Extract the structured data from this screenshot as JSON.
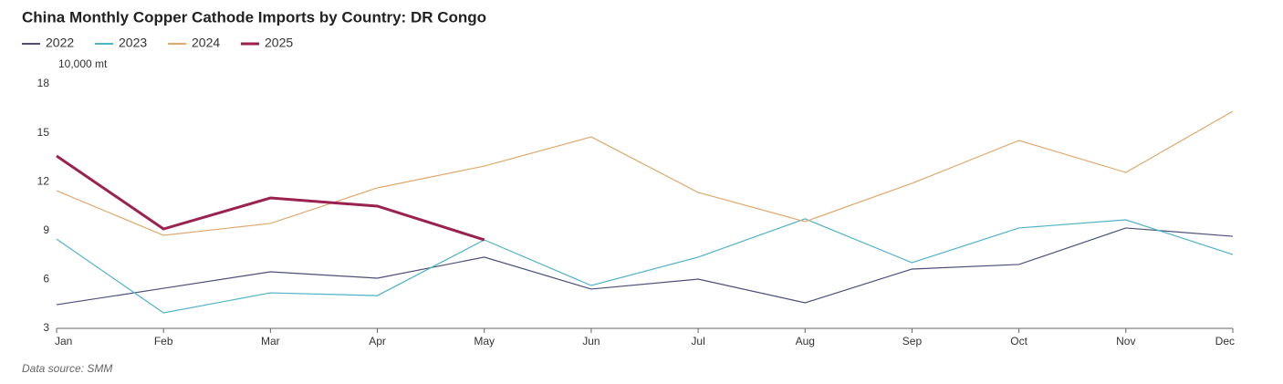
{
  "chart_data": {
    "type": "line",
    "title": "China Monthly Copper Cathode Imports by Country: DR Congo",
    "y_label": "10,000 mt",
    "source": "Data source:  SMM",
    "categories": [
      "Jan",
      "Feb",
      "Mar",
      "Apr",
      "May",
      "Jun",
      "Jul",
      "Aug",
      "Sep",
      "Oct",
      "Nov",
      "Dec"
    ],
    "series": [
      {
        "name": "2022",
        "color": "#4a5078",
        "values": [
          4.45,
          5.46,
          6.47,
          6.08,
          7.37,
          5.41,
          6.02,
          4.57,
          6.64,
          6.92,
          9.16,
          8.65
        ]
      },
      {
        "name": "2023",
        "color": "#4fb3c8",
        "values": [
          8.48,
          3.95,
          5.18,
          5.01,
          8.43,
          5.63,
          7.37,
          9.72,
          7.03,
          9.16,
          9.66,
          7.53
        ]
      },
      {
        "name": "2024",
        "color": "#e0a96d",
        "values": [
          11.45,
          8.71,
          9.44,
          11.62,
          12.96,
          14.75,
          11.34,
          9.55,
          11.9,
          14.53,
          12.57,
          16.32
        ]
      },
      {
        "name": "2025",
        "color": "#9b2150",
        "values": [
          13.58,
          9.1,
          11.0,
          10.5,
          8.43,
          null,
          null,
          null,
          null,
          null,
          null,
          null
        ]
      }
    ],
    "ylim": [
      3,
      18
    ],
    "yticks": [
      3,
      6,
      9,
      12,
      15,
      18
    ]
  }
}
